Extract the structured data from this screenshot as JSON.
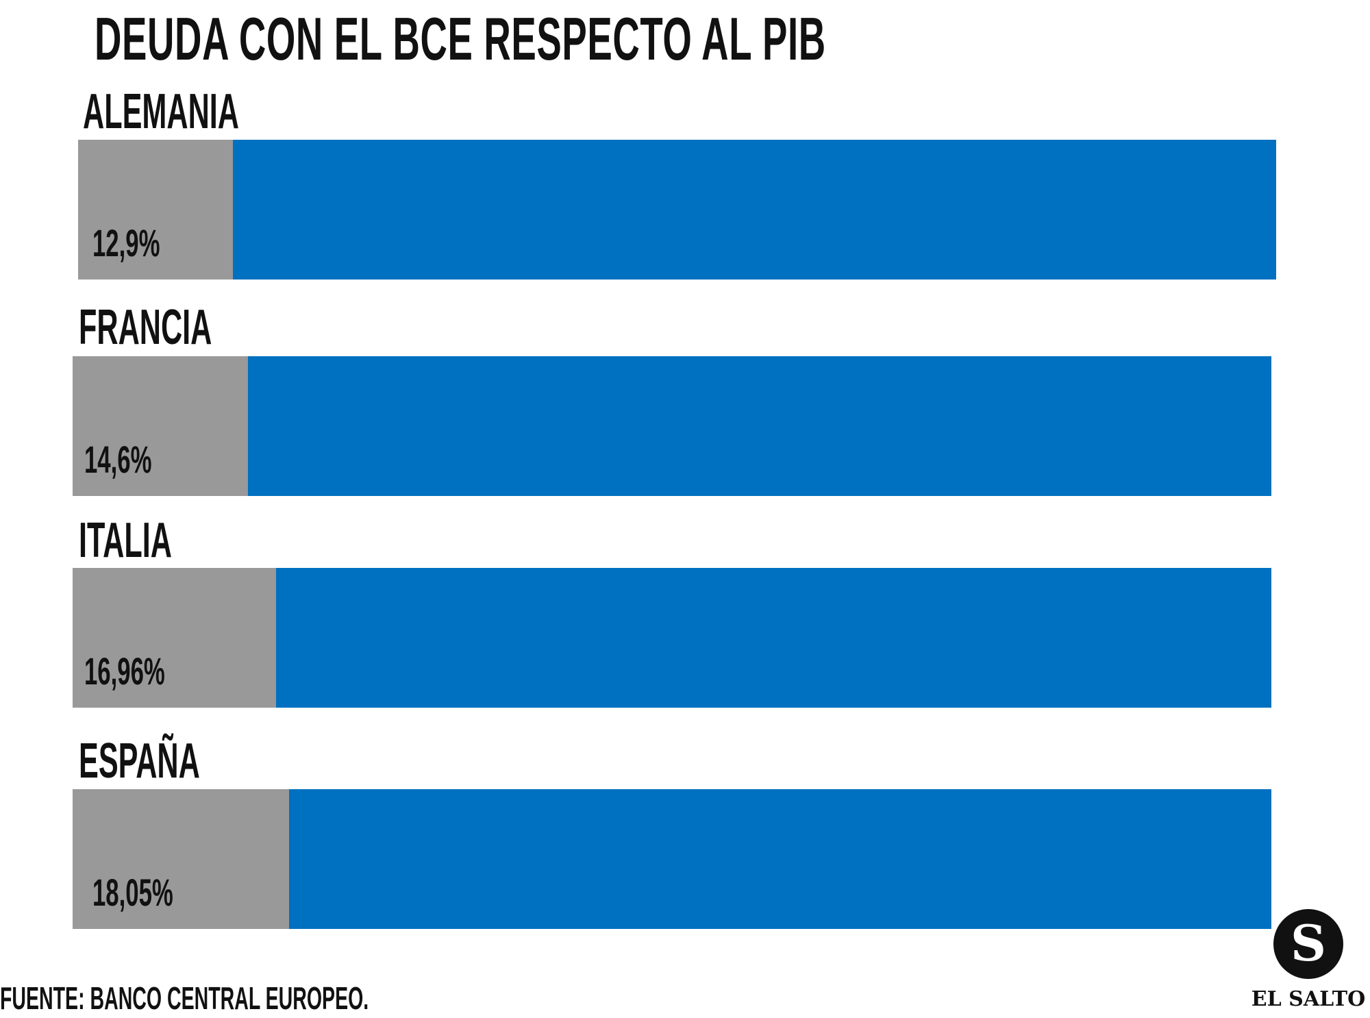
{
  "chart_data": {
    "type": "bar",
    "orientation": "horizontal",
    "stacked_on_full_scale": true,
    "title": "DEUDA CON EL BCE RESPECTO AL PIB",
    "categories": [
      "ALEMANIA",
      "FRANCIA",
      "ITALIA",
      "ESPAÑA"
    ],
    "values": [
      12.9,
      14.6,
      16.96,
      18.05
    ],
    "value_labels": [
      "12,9%",
      "14,6%",
      "16,96%",
      "18,05%"
    ],
    "xlim": [
      0,
      100
    ],
    "grid": false,
    "colors": {
      "value": "#999999",
      "remainder": "#0070C0"
    }
  },
  "source": "FUENTE: BANCO CENTRAL EUROPEO.",
  "logo": {
    "letter": "S",
    "name": "EL SALTO"
  }
}
